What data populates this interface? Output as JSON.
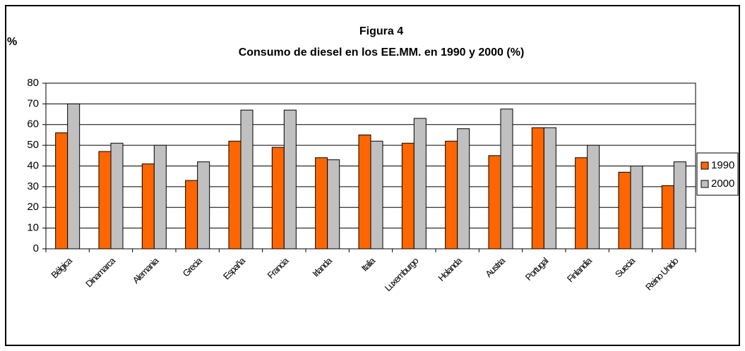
{
  "chart_data": {
    "type": "bar",
    "title": "Figura 4",
    "subtitle": "Consumo de diesel en los EE.MM. en 1990 y 2000 (%)",
    "y_label": "%",
    "categories": [
      "Bélgica",
      "Dinamarca",
      "Alemania",
      "Grecia",
      "España",
      "Francia",
      "Irlanda",
      "Italia",
      "Luxemburgo",
      "Holanda",
      "Austria",
      "Portugal",
      "Finlandia",
      "Suecia",
      "Reino Unido"
    ],
    "series": [
      {
        "name": "1990",
        "color": "#ff6600",
        "values": [
          56,
          47,
          41,
          33,
          52,
          49,
          44,
          55,
          51,
          52,
          45,
          58.5,
          44,
          37,
          30.5
        ]
      },
      {
        "name": "2000",
        "color": "#c0c0c0",
        "values": [
          70,
          51,
          50,
          42,
          67,
          67,
          43,
          52,
          63,
          58,
          67.5,
          58.5,
          50,
          40,
          42
        ]
      }
    ],
    "ylim": [
      0,
      80
    ],
    "yticks": [
      0,
      10,
      20,
      30,
      40,
      50,
      60,
      70,
      80
    ],
    "grid": true,
    "legend": "right"
  }
}
